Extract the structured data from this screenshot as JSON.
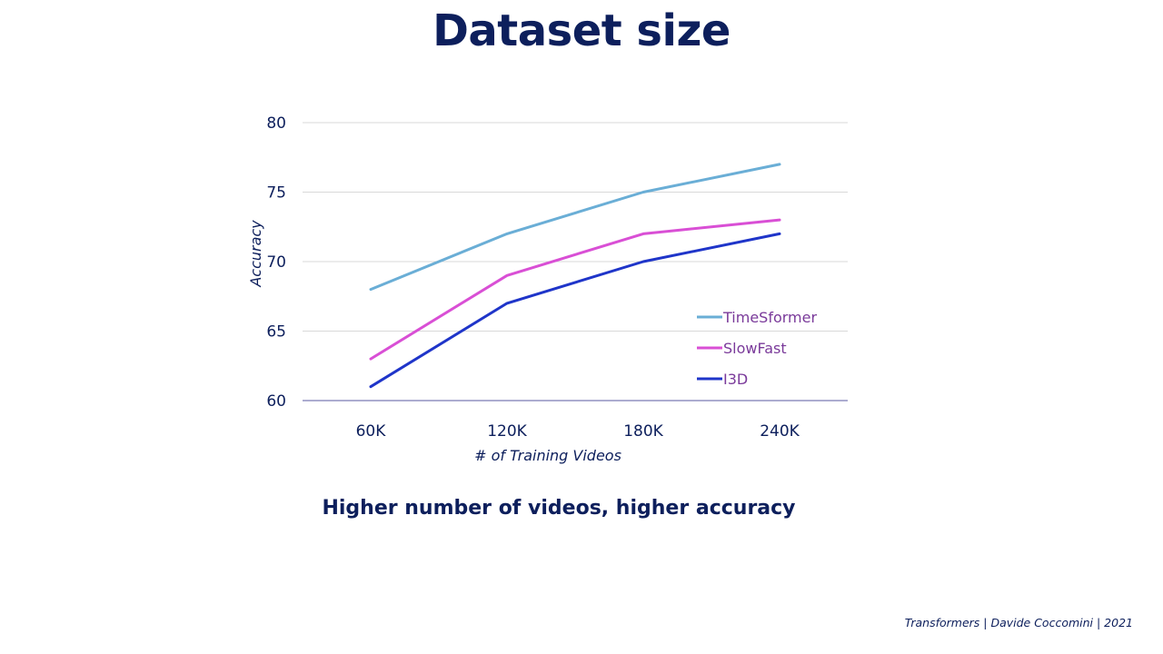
{
  "slide": {
    "title": "Dataset size",
    "caption": "Higher number of videos, higher accuracy",
    "footer": "Transformers | Davide Coccomini | 2021"
  },
  "chart_data": {
    "type": "line",
    "categories": [
      "60K",
      "120K",
      "180K",
      "240K"
    ],
    "series": [
      {
        "name": "TimeSformer",
        "values": [
          68,
          72,
          75,
          77
        ],
        "color": "#6aaed6"
      },
      {
        "name": "SlowFast",
        "values": [
          63,
          69,
          72,
          73
        ],
        "color": "#d94fd5"
      },
      {
        "name": "I3D",
        "values": [
          61,
          67,
          70,
          72
        ],
        "color": "#1f35c9"
      }
    ],
    "xlabel": "# of Training Videos",
    "ylabel": "Accuracy",
    "ylim": [
      60,
      80
    ],
    "yticks": [
      60,
      65,
      70,
      75,
      80
    ],
    "grid": true,
    "legend": "bottom-right, inside plot"
  }
}
